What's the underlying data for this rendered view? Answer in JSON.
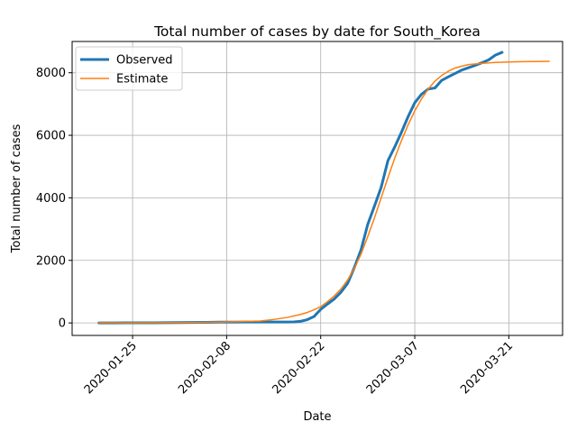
{
  "chart_data": {
    "type": "line",
    "title": "Total number of cases by date for South_Korea",
    "xlabel": "Date",
    "ylabel": "Total number of cases",
    "xlim": [
      "2020-01-16",
      "2020-03-29"
    ],
    "ylim": [
      -400,
      9000
    ],
    "x_ticks": [
      "2020-01-25",
      "2020-02-08",
      "2020-02-22",
      "2020-03-07",
      "2020-03-21"
    ],
    "y_ticks": [
      0,
      2000,
      4000,
      6000,
      8000
    ],
    "grid": true,
    "legend_position": "upper left",
    "colors": {
      "observed": "#1f77b4",
      "estimate": "#ff7f0e"
    },
    "series": [
      {
        "name": "Observed",
        "x": [
          "2020-01-20",
          "2020-01-22",
          "2020-01-24",
          "2020-01-26",
          "2020-01-28",
          "2020-01-30",
          "2020-02-01",
          "2020-02-03",
          "2020-02-05",
          "2020-02-07",
          "2020-02-09",
          "2020-02-11",
          "2020-02-13",
          "2020-02-15",
          "2020-02-17",
          "2020-02-18",
          "2020-02-19",
          "2020-02-20",
          "2020-02-21",
          "2020-02-22",
          "2020-02-23",
          "2020-02-24",
          "2020-02-25",
          "2020-02-26",
          "2020-02-27",
          "2020-02-28",
          "2020-02-29",
          "2020-03-01",
          "2020-03-02",
          "2020-03-03",
          "2020-03-04",
          "2020-03-05",
          "2020-03-06",
          "2020-03-07",
          "2020-03-08",
          "2020-03-09",
          "2020-03-10",
          "2020-03-11",
          "2020-03-12",
          "2020-03-13",
          "2020-03-14",
          "2020-03-15",
          "2020-03-16",
          "2020-03-17",
          "2020-03-18",
          "2020-03-19",
          "2020-03-20"
        ],
        "values": [
          1,
          1,
          2,
          3,
          4,
          6,
          12,
          15,
          19,
          24,
          27,
          28,
          28,
          28,
          30,
          31,
          51,
          104,
          204,
          433,
          602,
          763,
          977,
          1261,
          1766,
          2337,
          3150,
          3736,
          4335,
          5186,
          5621,
          6088,
          6593,
          7041,
          7313,
          7478,
          7513,
          7755,
          7869,
          7979,
          8086,
          8162,
          8236,
          8320,
          8413,
          8565,
          8652
        ]
      },
      {
        "name": "Estimate",
        "x": [
          "2020-01-20",
          "2020-01-25",
          "2020-01-30",
          "2020-02-04",
          "2020-02-09",
          "2020-02-13",
          "2020-02-15",
          "2020-02-17",
          "2020-02-19",
          "2020-02-20",
          "2020-02-21",
          "2020-02-22",
          "2020-02-23",
          "2020-02-24",
          "2020-02-25",
          "2020-02-26",
          "2020-02-27",
          "2020-02-28",
          "2020-02-29",
          "2020-03-01",
          "2020-03-02",
          "2020-03-03",
          "2020-03-04",
          "2020-03-05",
          "2020-03-06",
          "2020-03-07",
          "2020-03-08",
          "2020-03-09",
          "2020-03-10",
          "2020-03-11",
          "2020-03-12",
          "2020-03-13",
          "2020-03-14",
          "2020-03-15",
          "2020-03-17",
          "2020-03-19",
          "2020-03-21",
          "2020-03-23",
          "2020-03-25",
          "2020-03-27"
        ],
        "values": [
          2,
          4,
          8,
          15,
          35,
          60,
          110,
          175,
          270,
          335,
          420,
          520,
          680,
          860,
          1080,
          1370,
          1740,
          2200,
          2760,
          3360,
          4000,
          4640,
          5260,
          5820,
          6330,
          6780,
          7160,
          7480,
          7730,
          7910,
          8050,
          8150,
          8210,
          8260,
          8300,
          8330,
          8345,
          8355,
          8360,
          8365
        ]
      }
    ]
  }
}
